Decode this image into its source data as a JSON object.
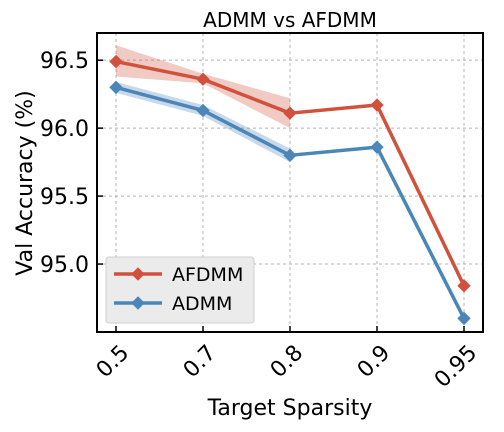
{
  "chart_data": {
    "type": "line",
    "title": "ADMM vs AFDMM",
    "xlabel": "Target Sparsity",
    "ylabel": "Val Accuracy (%)",
    "categories": [
      "0.5",
      "0.7",
      "0.8",
      "0.9",
      "0.95"
    ],
    "ylim": [
      94.5,
      96.7
    ],
    "yticks": [
      "95.0",
      "95.5",
      "96.0",
      "96.5"
    ],
    "ytick_values": [
      95.0,
      95.5,
      96.0,
      96.5
    ],
    "grid": true,
    "legend_position": "lower-left",
    "series": [
      {
        "name": "AFDMM",
        "color": "#d0513c",
        "values": [
          96.49,
          96.36,
          96.11,
          96.17,
          94.84
        ],
        "band_low": [
          96.38,
          96.33,
          96.0,
          null,
          null
        ],
        "band_high": [
          96.61,
          96.4,
          96.22,
          null,
          null
        ]
      },
      {
        "name": "ADMM",
        "color": "#4a86b8",
        "values": [
          96.3,
          96.13,
          95.8,
          95.86,
          94.6
        ],
        "band_low": [
          96.26,
          96.09,
          95.75,
          null,
          null
        ],
        "band_high": [
          96.34,
          96.17,
          95.85,
          null,
          null
        ]
      }
    ]
  }
}
